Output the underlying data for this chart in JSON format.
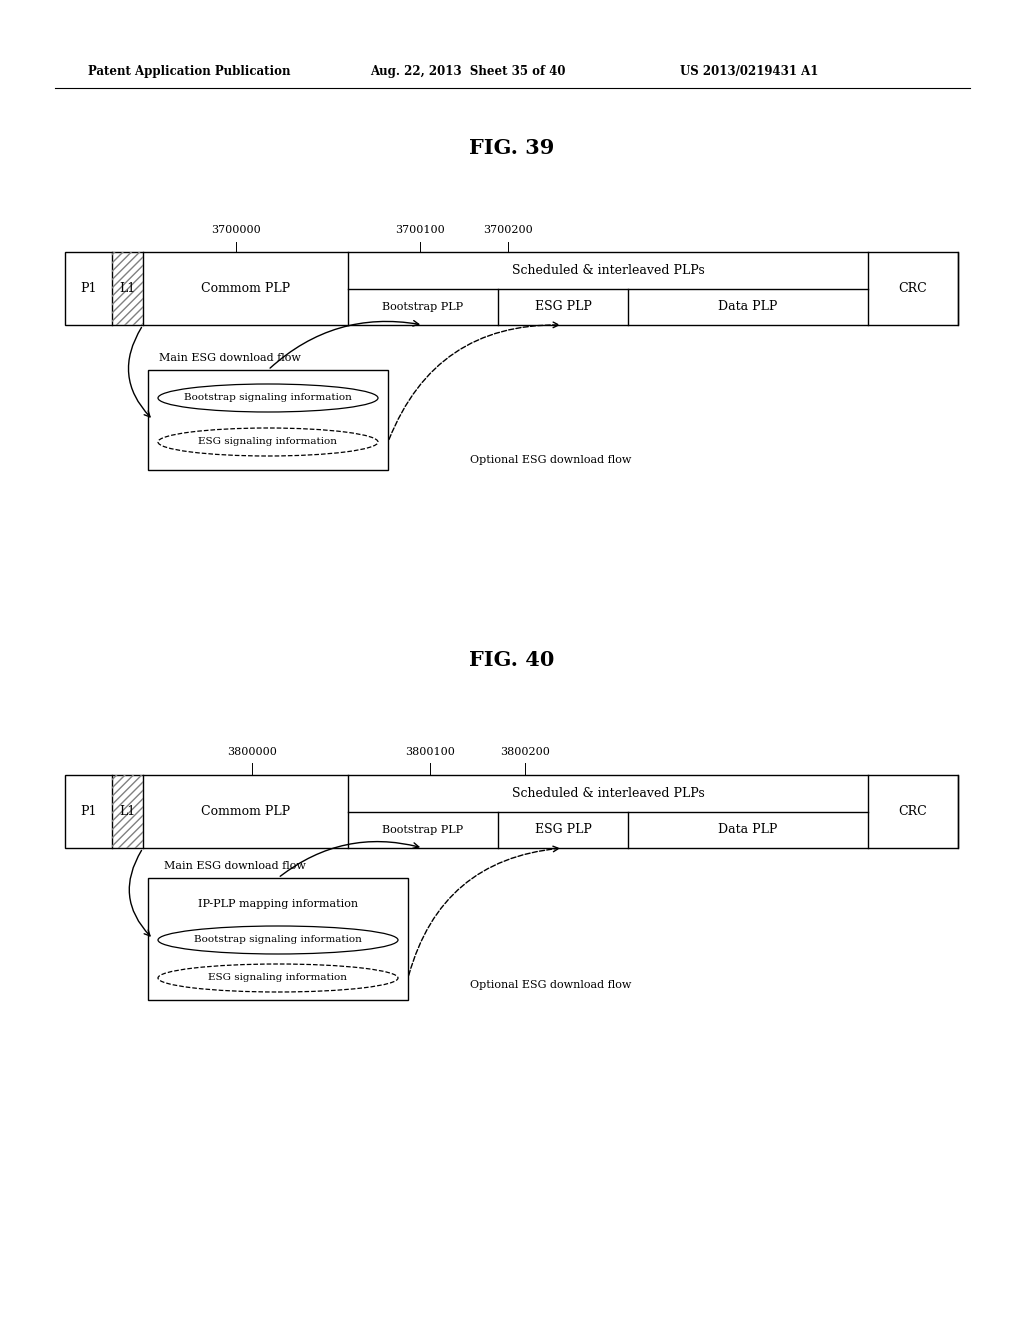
{
  "fig_width": 10.24,
  "fig_height": 13.2,
  "bg_color": "#ffffff",
  "header_text": "Patent Application Publication",
  "header_date": "Aug. 22, 2013  Sheet 35 of 40",
  "header_patent": "US 2013/0219431 A1",
  "fig39_title": "FIG. 39",
  "fig40_title": "FIG. 40",
  "fig39": {
    "label_3700000": "3700000",
    "label_3700100": "3700100",
    "label_3700200": "3700200",
    "P1_text": "P1",
    "L1_text": "L1",
    "common_plp_text": "Commom PLP",
    "scheduled_text": "Scheduled & interleaved PLPs",
    "bootstrap_plp_text": "Bootstrap PLP",
    "esg_plp_text": "ESG PLP",
    "data_plp_text": "Data PLP",
    "crc_text": "CRC",
    "main_flow_text": "Main ESG download flow",
    "optional_flow_text": "Optional ESG download flow",
    "bootstrap_sig_text": "Bootstrap signaling information",
    "esg_sig_text": "ESG signaling information"
  },
  "fig40": {
    "label_3800000": "3800000",
    "label_3800100": "3800100",
    "label_3800200": "3800200",
    "P1_text": "P1",
    "L1_text": "L1",
    "common_plp_text": "Commom PLP",
    "scheduled_text": "Scheduled & interleaved PLPs",
    "bootstrap_plp_text": "Bootstrap PLP",
    "esg_plp_text": "ESG PLP",
    "data_plp_text": "Data PLP",
    "crc_text": "CRC",
    "main_flow_text": "Main ESG download flow",
    "optional_flow_text": "Optional ESG download flow",
    "ip_plp_text": "IP-PLP mapping information",
    "bootstrap_sig_text": "Bootstrap signaling information",
    "esg_sig_text": "ESG signaling information"
  }
}
